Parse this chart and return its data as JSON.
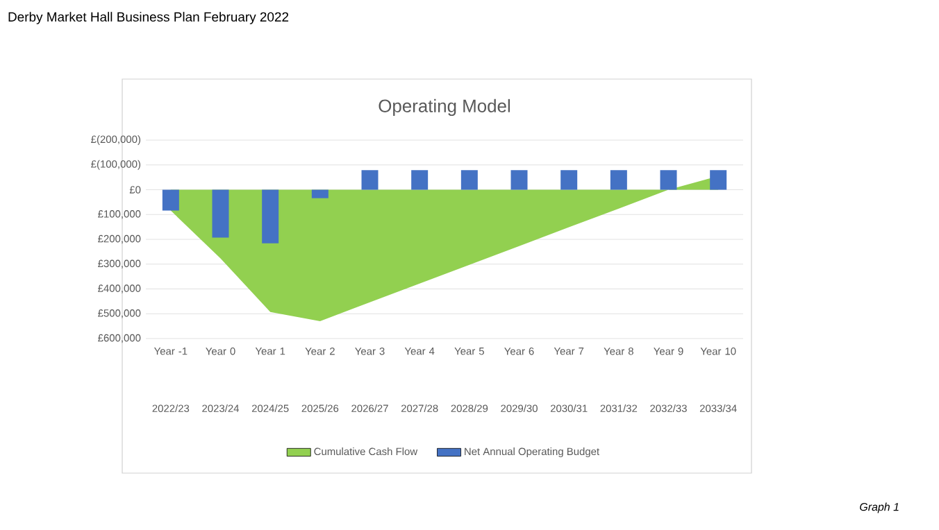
{
  "chart_data": {
    "type": "bar",
    "title": "Operating Model",
    "categories": [
      "Year -1",
      "Year 0",
      "Year 1",
      "Year 2",
      "Year 3",
      "Year 4",
      "Year 5",
      "Year 6",
      "Year 7",
      "Year 8",
      "Year 9",
      "Year 10"
    ],
    "series": [
      {
        "name": "Cumulative Cash Flow",
        "type": "area",
        "color": "#92d050",
        "values": [
          84000,
          277000,
          493000,
          530000,
          454000,
          378000,
          303000,
          227000,
          151000,
          76000,
          0,
          -55000
        ]
      },
      {
        "name": "Net Annual Operating Budget",
        "type": "bar",
        "color": "#4472c4",
        "values": [
          84000,
          193000,
          216000,
          34000,
          -79000,
          -79000,
          -79000,
          -79000,
          -79000,
          -79000,
          -79000,
          -79000
        ]
      }
    ],
    "ylim": [
      600000,
      -200000
    ],
    "yticks": [
      {
        "value": -200000,
        "label": "£(200,000)"
      },
      {
        "value": -100000,
        "label": "£(100,000)"
      },
      {
        "value": 0,
        "label": "£0"
      },
      {
        "value": 100000,
        "label": "£100,000"
      },
      {
        "value": 200000,
        "label": "£200,000"
      },
      {
        "value": 300000,
        "label": "£300,000"
      },
      {
        "value": 400000,
        "label": "£400,000"
      },
      {
        "value": 500000,
        "label": "£500,000"
      },
      {
        "value": 600000,
        "label": "£600,000"
      }
    ],
    "grid": "y",
    "legend": "bottom",
    "annotations": [
      "Derby Market Hall Business Plan February 2022",
      "2022/23",
      "2023/24",
      "2024/25",
      "2025/26",
      "2026/27",
      "2027/28",
      "2028/29",
      "2029/30",
      "2030/31",
      "2031/32",
      "2032/33",
      "2033/34",
      "Graph 1"
    ]
  }
}
